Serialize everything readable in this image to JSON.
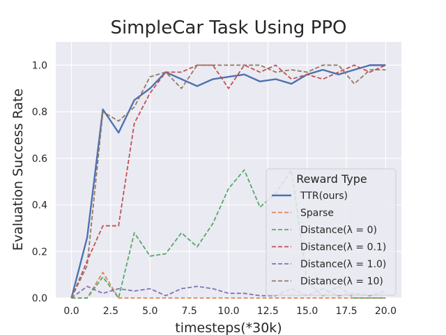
{
  "chart_data": {
    "type": "line",
    "title": "SimpleCar Task Using PPO",
    "xlabel": "timesteps(*30k)",
    "ylabel": "Evaluation Success Rate",
    "xlim": [
      -1.0,
      21.0
    ],
    "ylim": [
      0.0,
      1.1
    ],
    "xticks": [
      "0.0",
      "2.5",
      "5.0",
      "7.5",
      "10.0",
      "12.5",
      "15.0",
      "17.5",
      "20.0"
    ],
    "yticks": [
      "0.0",
      "0.2",
      "0.4",
      "0.6",
      "0.8",
      "1.0"
    ],
    "grid": true,
    "legend_title": "Reward Type",
    "legend_position": "center-right",
    "x": [
      0,
      1,
      2,
      3,
      4,
      5,
      6,
      7,
      8,
      9,
      10,
      11,
      12,
      13,
      14,
      15,
      16,
      17,
      18,
      19,
      20
    ],
    "series": [
      {
        "name": "TTR(ours)",
        "color": "#4c72b0",
        "dashed": false,
        "values": [
          0.0,
          0.26,
          0.81,
          0.71,
          0.85,
          0.9,
          0.97,
          0.94,
          0.91,
          0.94,
          0.95,
          0.96,
          0.93,
          0.94,
          0.92,
          0.96,
          0.98,
          0.96,
          0.98,
          1.0,
          1.0
        ]
      },
      {
        "name": "Sparse",
        "color": "#dd8452",
        "dashed": true,
        "values": [
          0.0,
          0.0,
          0.11,
          0.0,
          0.0,
          0.0,
          0.0,
          0.0,
          0.0,
          0.0,
          0.0,
          0.0,
          0.0,
          0.0,
          0.0,
          0.0,
          0.0,
          0.0,
          0.0,
          0.0,
          0.0
        ]
      },
      {
        "name": "Distance(λ = 0)",
        "color": "#55a868",
        "dashed": true,
        "values": [
          0.0,
          0.0,
          0.09,
          0.0,
          0.28,
          0.18,
          0.19,
          0.28,
          0.22,
          0.32,
          0.47,
          0.55,
          0.39,
          0.45,
          0.55,
          0.07,
          0.01,
          0.05,
          0.0,
          0.0,
          0.0
        ]
      },
      {
        "name": "Distance(λ = 0.1)",
        "color": "#c44e52",
        "dashed": true,
        "values": [
          0.0,
          0.16,
          0.31,
          0.31,
          0.75,
          0.88,
          0.97,
          0.97,
          1.0,
          1.0,
          0.9,
          1.0,
          0.97,
          1.0,
          0.94,
          0.96,
          0.94,
          0.97,
          1.0,
          0.97,
          1.0
        ]
      },
      {
        "name": "Distance(λ = 1.0)",
        "color": "#8172b3",
        "dashed": true,
        "values": [
          0.0,
          0.05,
          0.02,
          0.04,
          0.03,
          0.04,
          0.01,
          0.04,
          0.05,
          0.04,
          0.02,
          0.02,
          0.01,
          0.01,
          0.04,
          0.01,
          0.04,
          0.01,
          0.02,
          0.01,
          0.03
        ]
      },
      {
        "name": "Distance(λ = 10)",
        "color": "#937860",
        "dashed": true,
        "values": [
          0.0,
          0.14,
          0.8,
          0.76,
          0.82,
          0.95,
          0.97,
          0.9,
          1.0,
          1.0,
          1.0,
          1.0,
          1.0,
          0.97,
          0.98,
          0.97,
          1.0,
          1.0,
          0.92,
          0.98,
          0.98
        ]
      }
    ]
  }
}
